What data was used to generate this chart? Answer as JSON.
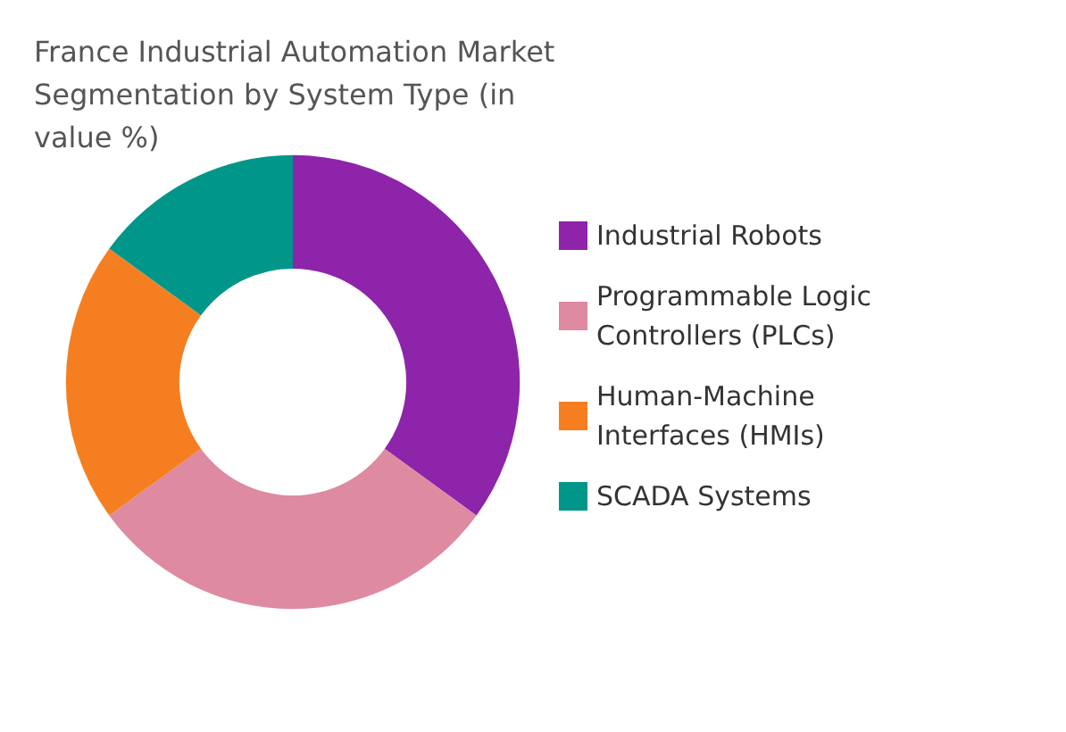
{
  "chart_data": {
    "type": "donut",
    "title": "France Industrial Automation Market Segmentation by System Type (in value %)",
    "categories": [
      "Industrial Robots",
      "Programmable Logic Controllers (PLCs)",
      "Human-Machine Interfaces (HMIs)",
      "SCADA Systems"
    ],
    "values": [
      35,
      30,
      20,
      15
    ],
    "colors": [
      "#8e24aa",
      "#de8aa0",
      "#f57f20",
      "#00968a"
    ],
    "legend": "right"
  }
}
